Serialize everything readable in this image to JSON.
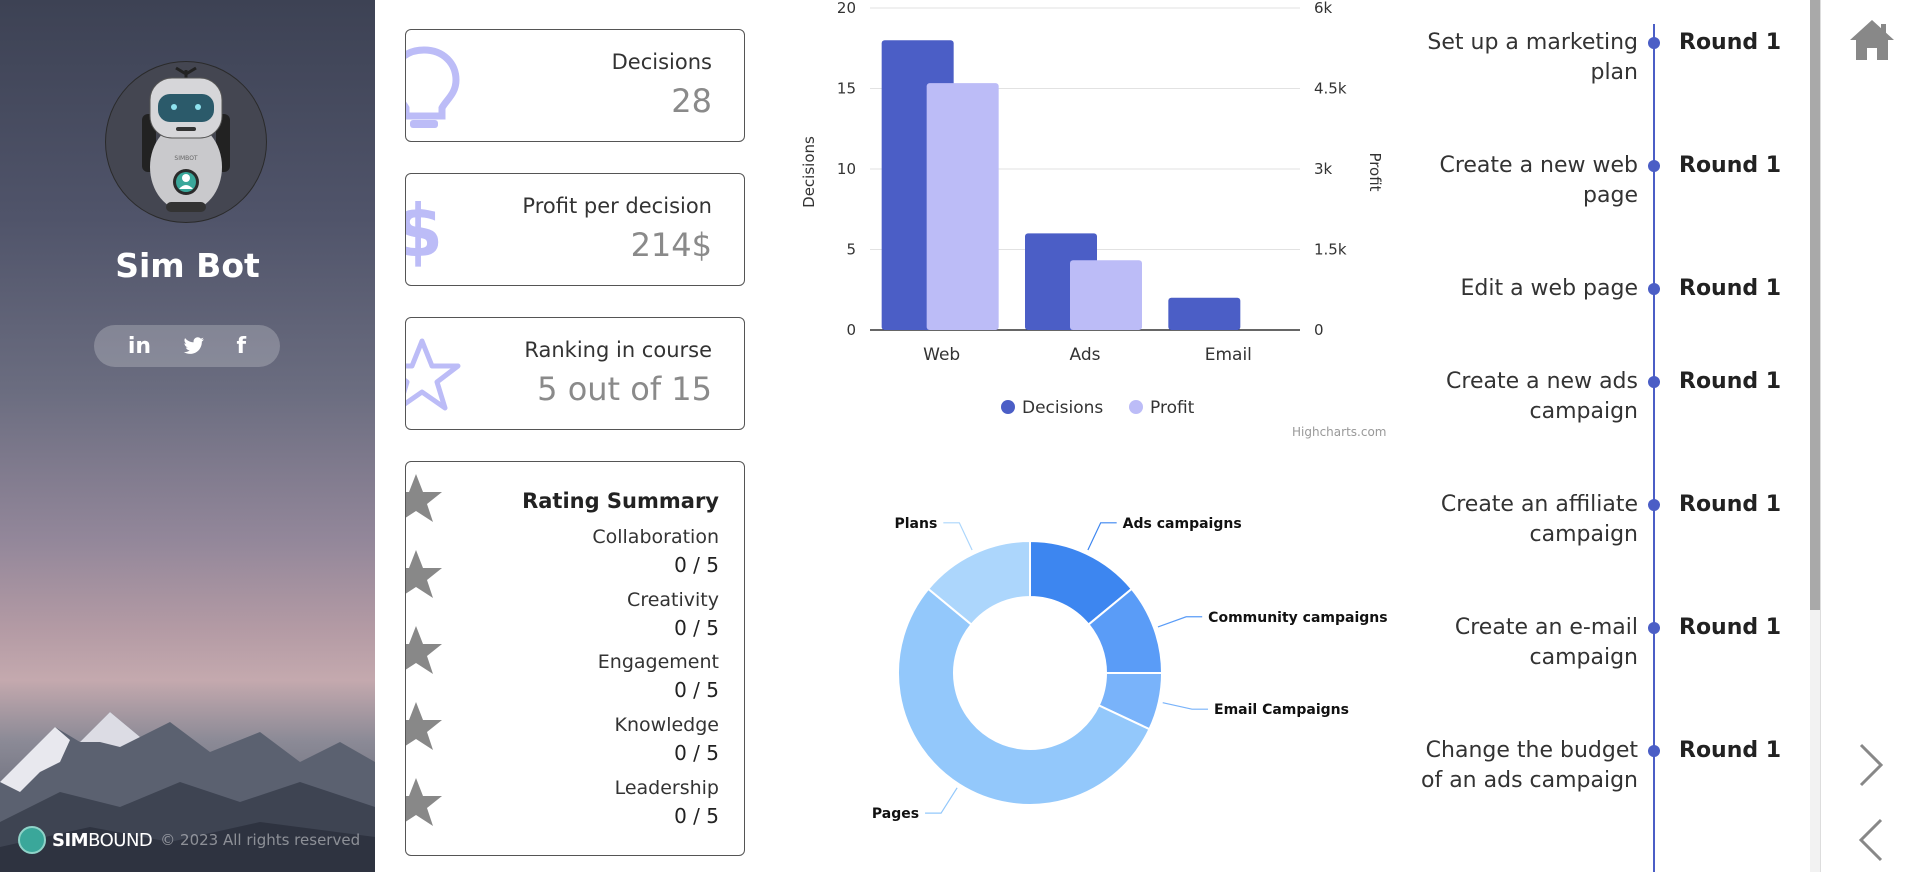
{
  "profile": {
    "name": "Sim Bot",
    "social": {
      "linkedin": "in",
      "twitter": "🐦",
      "facebook": "f"
    }
  },
  "brand": {
    "logo_text_bold": "SIM",
    "logo_text_light": "BOUND",
    "copyright": "© 2023 All rights reserved"
  },
  "stats": {
    "decisions": {
      "label": "Decisions",
      "value": "28"
    },
    "profit": {
      "label": "Profit per decision",
      "value": "214$"
    },
    "ranking": {
      "label": "Ranking in course",
      "value": "5 out of 15"
    }
  },
  "rating": {
    "title": "Rating Summary",
    "items": [
      {
        "label": "Collaboration",
        "value": "0 / 5"
      },
      {
        "label": "Creativity",
        "value": "0 / 5"
      },
      {
        "label": "Engagement",
        "value": "0 / 5"
      },
      {
        "label": "Knowledge",
        "value": "0 / 5"
      },
      {
        "label": "Leadership",
        "value": "0 / 5"
      }
    ]
  },
  "chart_data": [
    {
      "type": "bar",
      "categories": [
        "Web",
        "Ads",
        "Email"
      ],
      "series": [
        {
          "name": "Decisions",
          "axis": "left",
          "values": [
            18,
            6,
            2
          ],
          "color": "#4b5ec6"
        },
        {
          "name": "Profit",
          "axis": "right",
          "values": [
            4600,
            1300,
            0
          ],
          "color": "#bcbcf7"
        }
      ],
      "yleft": {
        "label": "Decisions",
        "min": 0,
        "max": 20,
        "ticks": [
          "0",
          "5",
          "10",
          "15",
          "20"
        ]
      },
      "yright": {
        "label": "Profit",
        "min": 0,
        "max": 6000,
        "ticks": [
          "0",
          "1.5k",
          "3k",
          "4.5k",
          "6k"
        ]
      },
      "legend": "bottom-center",
      "credit": "Highcharts.com"
    },
    {
      "type": "pie",
      "variant": "donut",
      "slices": [
        {
          "label": "Ads campaigns",
          "value": 14,
          "color": "#3d86f0"
        },
        {
          "label": "Community campaigns",
          "value": 11,
          "color": "#5a9cf7"
        },
        {
          "label": "Email Campaigns",
          "value": 7,
          "color": "#79b3fa"
        },
        {
          "label": "Pages",
          "value": 54,
          "color": "#93c8fb"
        },
        {
          "label": "Plans",
          "value": 14,
          "color": "#acd6fc"
        }
      ]
    }
  ],
  "timeline": [
    {
      "task": "Set up a marketing plan",
      "round": "Round 1"
    },
    {
      "task": "Create a new web page",
      "round": "Round 1"
    },
    {
      "task": "Edit a web page",
      "round": "Round 1"
    },
    {
      "task": "Create a new ads campaign",
      "round": "Round 1"
    },
    {
      "task": "Create an affiliate campaign",
      "round": "Round 1"
    },
    {
      "task": "Create an e-mail campaign",
      "round": "Round 1"
    },
    {
      "task": "Change the budget of an ads campaign",
      "round": "Round 1"
    }
  ],
  "colors": {
    "accent": "#4b5ec6",
    "accent_light": "#bcbcf7",
    "icon_gray": "#888888"
  }
}
